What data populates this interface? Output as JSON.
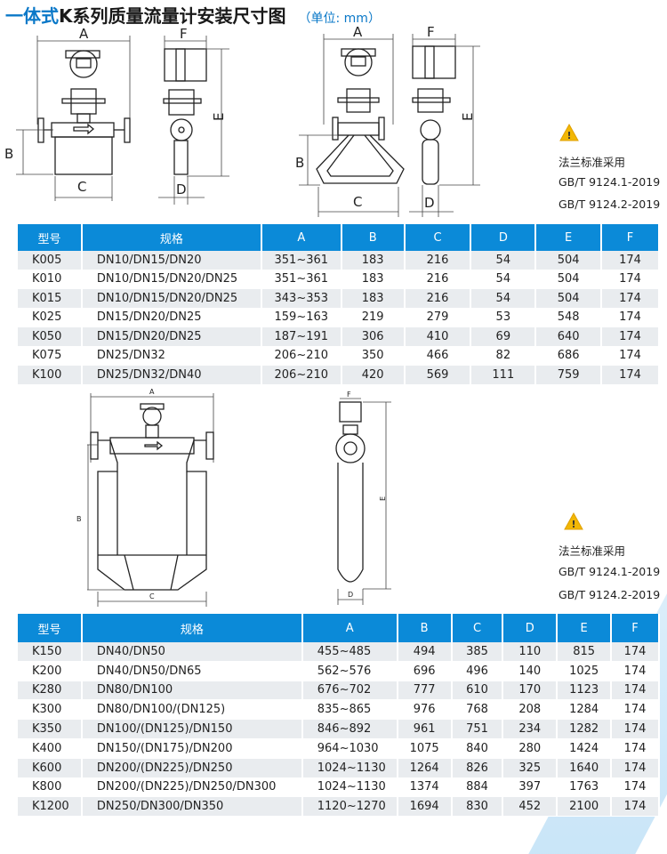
{
  "title": {
    "lead": "一体式",
    "rest": "K系列质量流量计安装尺寸图",
    "unit": "（单位: mm）"
  },
  "dims": {
    "A": "A",
    "B": "B",
    "C": "C",
    "D": "D",
    "E": "E",
    "F": "F"
  },
  "notes": [
    {
      "icon": "warning-icon",
      "lines": [
        "法兰标准采用",
        "GB/T 9124.1-2019",
        "GB/T 9124.2-2019"
      ]
    },
    {
      "icon": "warning-icon",
      "lines": [
        "法兰标准采用",
        "GB/T 9124.1-2019",
        "GB/T 9124.2-2019"
      ]
    }
  ],
  "colors": {
    "header": "#0b8ad8",
    "accent": "#0a78c8",
    "warning": "#f2b705"
  },
  "table1": {
    "headers": [
      "型号",
      "规格",
      "A",
      "B",
      "C",
      "D",
      "E",
      "F"
    ],
    "rows": [
      [
        "K005",
        "DN10/DN15/DN20",
        "351~361",
        "183",
        "216",
        "54",
        "504",
        "174"
      ],
      [
        "K010",
        "DN10/DN15/DN20/DN25",
        "351~361",
        "183",
        "216",
        "54",
        "504",
        "174"
      ],
      [
        "K015",
        "DN10/DN15/DN20/DN25",
        "343~353",
        "183",
        "216",
        "54",
        "504",
        "174"
      ],
      [
        "K025",
        "DN15/DN20/DN25",
        "159~163",
        "219",
        "279",
        "53",
        "548",
        "174"
      ],
      [
        "K050",
        "DN15/DN20/DN25",
        "187~191",
        "306",
        "410",
        "69",
        "640",
        "174"
      ],
      [
        "K075",
        "DN25/DN32",
        "206~210",
        "350",
        "466",
        "82",
        "686",
        "174"
      ],
      [
        "K100",
        "DN25/DN32/DN40",
        "206~210",
        "420",
        "569",
        "111",
        "759",
        "174"
      ]
    ]
  },
  "table2": {
    "headers": [
      "型号",
      "规格",
      "A",
      "B",
      "C",
      "D",
      "E",
      "F"
    ],
    "rows": [
      [
        "K150",
        "DN40/DN50",
        "455~485",
        "494",
        "385",
        "110",
        "815",
        "174"
      ],
      [
        "K200",
        "DN40/DN50/DN65",
        "562~576",
        "696",
        "496",
        "140",
        "1025",
        "174"
      ],
      [
        "K280",
        "DN80/DN100",
        "676~702",
        "777",
        "610",
        "170",
        "1123",
        "174"
      ],
      [
        "K300",
        "DN80/DN100/(DN125)",
        "835~865",
        "976",
        "768",
        "208",
        "1284",
        "174"
      ],
      [
        "K350",
        "DN100/(DN125)/DN150",
        "846~892",
        "961",
        "751",
        "234",
        "1282",
        "174"
      ],
      [
        "K400",
        "DN150/(DN175)/DN200",
        "964~1030",
        "1075",
        "840",
        "280",
        "1424",
        "174"
      ],
      [
        "K600",
        "DN200/(DN225)/DN250",
        "1024~1130",
        "1264",
        "826",
        "325",
        "1640",
        "174"
      ],
      [
        "K800",
        "DN200/(DN225)/DN250/DN300",
        "1024~1130",
        "1374",
        "884",
        "397",
        "1763",
        "174"
      ],
      [
        "K1200",
        "DN250/DN300/DN350",
        "1120~1270",
        "1694",
        "830",
        "452",
        "2100",
        "174"
      ]
    ]
  }
}
